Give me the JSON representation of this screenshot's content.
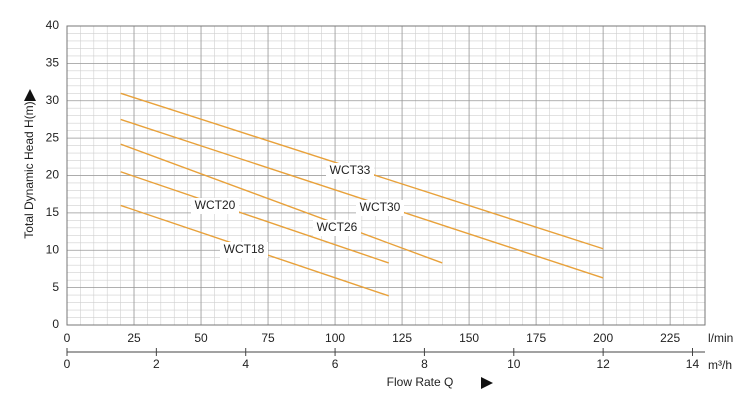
{
  "chart_data": {
    "type": "line",
    "xlabel": "Flow Rate Q",
    "ylabel": "Total Dynamic Head H(m)",
    "x_unit": "l/min",
    "x2_unit": "m³/h",
    "xlim": [
      0,
      238
    ],
    "xticks": [
      0,
      25,
      50,
      75,
      100,
      125,
      150,
      175,
      200,
      225
    ],
    "x2lim": [
      0,
      14.28
    ],
    "x2ticks": [
      0,
      2,
      4,
      6,
      8,
      10,
      12,
      14
    ],
    "ylim": [
      0,
      40
    ],
    "yticks": [
      0,
      5,
      10,
      15,
      20,
      25,
      30,
      35,
      40
    ],
    "grid": true,
    "minor_grid": true,
    "series": [
      {
        "name": "WCT33",
        "color": "#e8a13a",
        "x": [
          20,
          200
        ],
        "values": [
          31,
          10.2
        ]
      },
      {
        "name": "WCT30",
        "color": "#e8a13a",
        "x": [
          20,
          200
        ],
        "values": [
          27.5,
          6.3
        ]
      },
      {
        "name": "WCT26",
        "color": "#e8a13a",
        "x": [
          20,
          140
        ],
        "values": [
          24.2,
          8.3
        ]
      },
      {
        "name": "WCT20",
        "color": "#e8a13a",
        "x": [
          20,
          120
        ],
        "values": [
          20.5,
          8.3
        ]
      },
      {
        "name": "WCT18",
        "color": "#e8a13a",
        "x": [
          20,
          120
        ],
        "values": [
          16,
          3.9
        ]
      }
    ]
  }
}
